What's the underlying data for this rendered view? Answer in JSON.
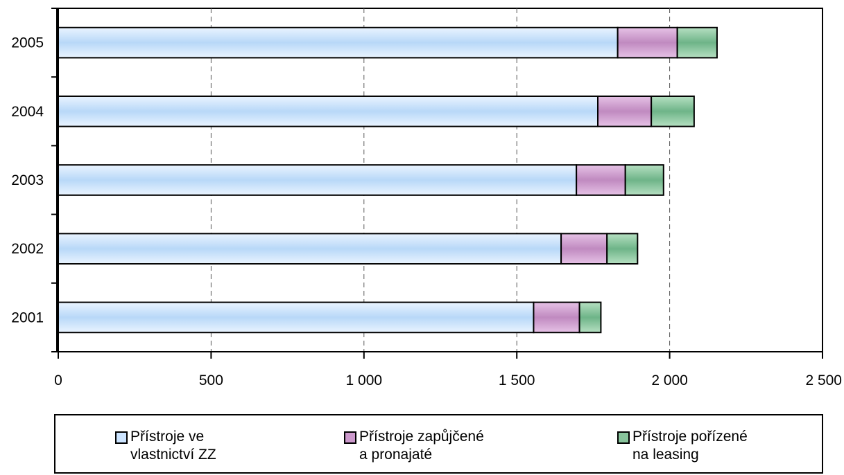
{
  "chart_data": {
    "type": "bar",
    "orientation": "horizontal",
    "stacked": true,
    "title": "",
    "xlabel": "",
    "ylabel": "",
    "categories": [
      "2001",
      "2002",
      "2003",
      "2004",
      "2005"
    ],
    "series": [
      {
        "name": "Přístroje ve\nvlastnictví ZZ",
        "color": "#cce4ff",
        "values": [
          1555,
          1645,
          1695,
          1765,
          1830
        ]
      },
      {
        "name": "Přístroje zapůjčené\na pronajaté",
        "color": "#cc99cc",
        "values": [
          150,
          150,
          160,
          175,
          195
        ]
      },
      {
        "name": "Přístroje pořízené\nna leasing",
        "color": "#88c49c",
        "values": [
          70,
          100,
          125,
          140,
          130
        ]
      }
    ],
    "xlim": [
      0,
      2500
    ],
    "x_ticks": [
      0,
      500,
      1000,
      1500,
      2000,
      2500
    ],
    "x_tick_labels": [
      "0",
      "500",
      "1 000",
      "1 500",
      "2 000",
      "2 500"
    ],
    "grid": "vertical dashed",
    "legend_position": "bottom"
  }
}
